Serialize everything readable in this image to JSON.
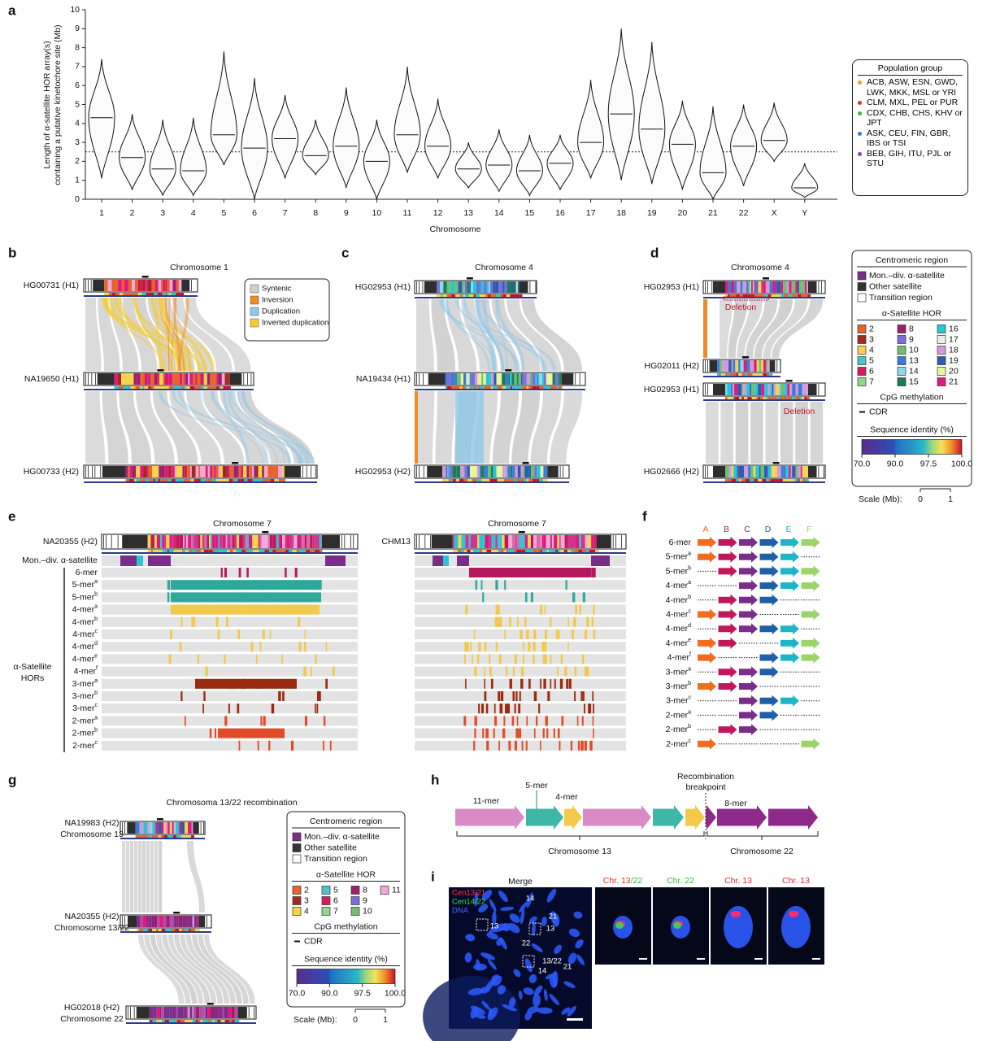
{
  "panel_a": {
    "label": "a",
    "ylabel": [
      "Length of α-satellite HOR array(s)",
      "containing a putative kinetochore site (Mb)"
    ],
    "xlabel": "Chromosome",
    "categories": [
      "1",
      "2",
      "3",
      "4",
      "5",
      "6",
      "7",
      "8",
      "9",
      "10",
      "11",
      "12",
      "13",
      "14",
      "15",
      "16",
      "17",
      "18",
      "19",
      "20",
      "21",
      "22",
      "X",
      "Y"
    ],
    "medians": [
      4.3,
      2.2,
      1.6,
      1.5,
      3.4,
      2.7,
      3.2,
      2.3,
      2.8,
      2.0,
      3.4,
      2.8,
      1.6,
      1.8,
      1.5,
      1.9,
      3.0,
      4.5,
      3.7,
      2.9,
      1.4,
      2.8,
      3.1,
      0.6
    ],
    "mins": [
      1.1,
      0.5,
      0.2,
      0.2,
      1.8,
      0.0,
      1.1,
      1.3,
      0.6,
      0.0,
      1.4,
      1.1,
      0.6,
      0.4,
      0.2,
      0.5,
      1.1,
      1.0,
      0.8,
      0.5,
      0.0,
      0.7,
      2.0,
      0.1
    ],
    "maxs": [
      7.4,
      4.5,
      4.2,
      4.3,
      7.8,
      6.4,
      5.5,
      4.2,
      5.9,
      4.2,
      7.0,
      5.3,
      3.0,
      3.7,
      3.4,
      3.4,
      6.3,
      9.0,
      8.3,
      5.2,
      4.9,
      5.0,
      5.1,
      1.9
    ],
    "ylim": [
      0,
      10
    ],
    "yticks": [
      0,
      1,
      2,
      3,
      4,
      5,
      6,
      7,
      8,
      9,
      10
    ],
    "threshold": 2.5,
    "legend": {
      "title": "Population group",
      "entries": [
        {
          "label": "ACB, ASW, ESN, GWD, LWK, MKK, MSL or YRI",
          "color": "#f39c2b"
        },
        {
          "label": "CLM, MXL, PEL or PUR",
          "color": "#e0302a"
        },
        {
          "label": "CDX, CHB, CHS, KHV or JPT",
          "color": "#3dbb3d"
        },
        {
          "label": "ASK, CEU, FIN, GBR, IBS or TSI",
          "color": "#2f7fd0"
        },
        {
          "label": "BEB, GIH, ITU, PJL or STU",
          "color": "#8a3fb5"
        }
      ]
    }
  },
  "panel_b": {
    "label": "b",
    "title": "Chromosome 1",
    "tracks": [
      "HG00731 (H1)",
      "NA19650 (H1)",
      "HG00733 (H2)"
    ],
    "legend": [
      {
        "label": "Syntenic",
        "color": "#cfcfcf"
      },
      {
        "label": "Inversion",
        "color": "#f08a24"
      },
      {
        "label": "Duplication",
        "color": "#8ec8ea"
      },
      {
        "label": "Inverted duplication",
        "color": "#f5cc2f"
      }
    ]
  },
  "panel_c": {
    "label": "c",
    "title": "Chromosome 4",
    "tracks": [
      "HG02953 (H1)",
      "NA19434 (H1)",
      "HG02953 (H2)"
    ]
  },
  "panel_d": {
    "label": "d",
    "title": "Chromosome 4",
    "tracks": [
      "HG02953 (H1)",
      "HG02011 (H2)",
      "HG02953 (H1)",
      "HG02666 (H2)"
    ],
    "annotations": [
      "Deletion",
      "Deletion"
    ]
  },
  "legend_d": {
    "region_title": "Centromeric region",
    "regions": [
      {
        "label": "Mon.–div. α-satellite",
        "color": "#7b2d8b"
      },
      {
        "label": "Other satellite",
        "color": "#333333"
      },
      {
        "label": "Transition region",
        "color": "#ffffff"
      }
    ],
    "hor_title": "α-Satellite HOR",
    "hors": [
      {
        "label": "2",
        "color": "#e8622c"
      },
      {
        "label": "3",
        "color": "#a3281f"
      },
      {
        "label": "4",
        "color": "#f5d34a"
      },
      {
        "label": "5",
        "color": "#4fc3c8"
      },
      {
        "label": "6",
        "color": "#d81b60"
      },
      {
        "label": "7",
        "color": "#8fd68f"
      },
      {
        "label": "8",
        "color": "#9c1f6e"
      },
      {
        "label": "9",
        "color": "#7b6fd6"
      },
      {
        "label": "10",
        "color": "#6fbf6f"
      },
      {
        "label": "13",
        "color": "#3a7bd5"
      },
      {
        "label": "14",
        "color": "#8fd8ea"
      },
      {
        "label": "15",
        "color": "#1b7a5a"
      },
      {
        "label": "16",
        "color": "#29c5d6"
      },
      {
        "label": "17",
        "color": "#eeeeee"
      },
      {
        "label": "18",
        "color": "#d39ad8"
      },
      {
        "label": "19",
        "color": "#2d5bb0"
      },
      {
        "label": "20",
        "color": "#e9f59a"
      },
      {
        "label": "21",
        "color": "#e0197d"
      }
    ],
    "cpg_title": "CpG methylation",
    "cdr": "CDR",
    "identity_title": "Sequence identity (%)",
    "identity_ticks": [
      {
        "value": 70,
        "label": "70.0"
      },
      {
        "value": 90,
        "label": "90.0"
      },
      {
        "value": 97.5,
        "label": "97.5"
      },
      {
        "value": 100,
        "label": "100.0"
      }
    ],
    "scale_label": "Scale (Mb):",
    "scale_ticks": [
      0,
      1
    ]
  },
  "panel_e": {
    "label": "e",
    "left": {
      "title": "Chromosome 7",
      "track": "NA20355 (H2)"
    },
    "right": {
      "title": "Chromosome 7",
      "track": "CHM13"
    },
    "mon_label": "Mon.–div. α-satellite",
    "group_label": [
      "α-Satellite",
      "HORs"
    ],
    "rows": [
      {
        "name": "6-mer"
      },
      {
        "name": "5-mer",
        "sup": "a"
      },
      {
        "name": "5-mer",
        "sup": "b"
      },
      {
        "name": "4-mer",
        "sup": "a"
      },
      {
        "name": "4-mer",
        "sup": "b"
      },
      {
        "name": "4-mer",
        "sup": "c"
      },
      {
        "name": "4-mer",
        "sup": "d"
      },
      {
        "name": "4-mer",
        "sup": "e"
      },
      {
        "name": "4-mer",
        "sup": "f"
      },
      {
        "name": "3-mer",
        "sup": "a"
      },
      {
        "name": "3-mer",
        "sup": "b"
      },
      {
        "name": "3-mer",
        "sup": "c"
      },
      {
        "name": "2-mer",
        "sup": "a"
      },
      {
        "name": "2-mer",
        "sup": "b"
      },
      {
        "name": "2-mer",
        "sup": "c"
      }
    ]
  },
  "panel_f": {
    "label": "f",
    "monomers": [
      {
        "label": "A",
        "color": "#f26b21"
      },
      {
        "label": "B",
        "color": "#c2185b"
      },
      {
        "label": "C",
        "color": "#7b2d8b"
      },
      {
        "label": "D",
        "color": "#1f5fa8"
      },
      {
        "label": "E",
        "color": "#1fb5c9"
      },
      {
        "label": "F",
        "color": "#9ed36a"
      }
    ],
    "rows": [
      {
        "name": "6-mer"
      },
      {
        "name": "5-mer",
        "sup": "a"
      },
      {
        "name": "5-mer",
        "sup": "b"
      },
      {
        "name": "4-mer",
        "sup": "a"
      },
      {
        "name": "4-mer",
        "sup": "b"
      },
      {
        "name": "4-mer",
        "sup": "c"
      },
      {
        "name": "4-mer",
        "sup": "d"
      },
      {
        "name": "4-mer",
        "sup": "e"
      },
      {
        "name": "4-mer",
        "sup": "f"
      },
      {
        "name": "3-mer",
        "sup": "a"
      },
      {
        "name": "3-mer",
        "sup": "b"
      },
      {
        "name": "3-mer",
        "sup": "c"
      },
      {
        "name": "2-mer",
        "sup": "a"
      },
      {
        "name": "2-mer",
        "sup": "b"
      },
      {
        "name": "2-mer",
        "sup": "c"
      }
    ]
  },
  "panel_g": {
    "label": "g",
    "title": "Chromosoma 13/22 recombination",
    "tracks": [
      {
        "sample": "NA19983 (H2)",
        "chromosome": "Chromosome 13"
      },
      {
        "sample": "NA20355 (H2)",
        "chromosome": "Chromosome 13/22"
      },
      {
        "sample": "HG02018 (H2)",
        "chromosome": "Chromosome 22"
      }
    ],
    "legend": {
      "region_title": "Centromeric region",
      "regions": [
        {
          "label": "Mon.–div. α-satellite",
          "color": "#7b2d8b"
        },
        {
          "label": "Other satellite",
          "color": "#333333"
        },
        {
          "label": "Transition region",
          "color": "#ffffff"
        }
      ],
      "hor_title": "α-Satellite HOR",
      "hors": [
        {
          "label": "2",
          "color": "#e8622c"
        },
        {
          "label": "3",
          "color": "#a3281f"
        },
        {
          "label": "4",
          "color": "#f5d34a"
        },
        {
          "label": "5",
          "color": "#4fc3c8"
        },
        {
          "label": "6",
          "color": "#d81b60"
        },
        {
          "label": "7",
          "color": "#8fd68f"
        },
        {
          "label": "8",
          "color": "#9c1f6e"
        },
        {
          "label": "9",
          "color": "#7b6fd6"
        },
        {
          "label": "10",
          "color": "#6fbf6f"
        },
        {
          "label": "11",
          "color": "#f4a7d8"
        }
      ],
      "cpg_title": "CpG methylation",
      "cdr": "CDR",
      "identity_title": "Sequence identity (%)",
      "identity_ticks": [
        {
          "value": 70,
          "label": "70.0"
        },
        {
          "value": 90,
          "label": "90.0"
        },
        {
          "value": 97.5,
          "label": "97.5"
        },
        {
          "value": 100,
          "label": "100.0"
        }
      ],
      "scale_label": "Scale (Mb):",
      "scale_ticks": [
        0,
        1
      ]
    }
  },
  "panel_h": {
    "label": "h",
    "segments": [
      "11-mer",
      "5-mer",
      "4-mer",
      "8-mer"
    ],
    "breakpoint": [
      "Recombination",
      "breakpoint"
    ],
    "regions": [
      "Chromosome 13",
      "Chromosome 22"
    ]
  },
  "panel_i": {
    "label": "i",
    "merge": "Merge",
    "channels": [
      {
        "label": "Cen13/21",
        "color": "#ff3b3b"
      },
      {
        "label": "Cen14/22",
        "color": "#3bdc3b"
      },
      {
        "label": "DNA",
        "color": "#3f6bff"
      }
    ],
    "markers": [
      "14",
      "21",
      "13",
      "13",
      "22",
      "13/22",
      "14",
      "21"
    ],
    "insets": [
      [
        {
          "text": "Chr. 13",
          "color": "#e0302a"
        },
        {
          "text": "/22",
          "color": "#2fbf2f"
        }
      ],
      [
        {
          "text": "Chr. 22",
          "color": "#2fbf2f"
        }
      ],
      [
        {
          "text": "Chr. 13",
          "color": "#e0302a"
        }
      ],
      [
        {
          "text": "Chr. 13",
          "color": "#e0302a"
        }
      ]
    ]
  }
}
